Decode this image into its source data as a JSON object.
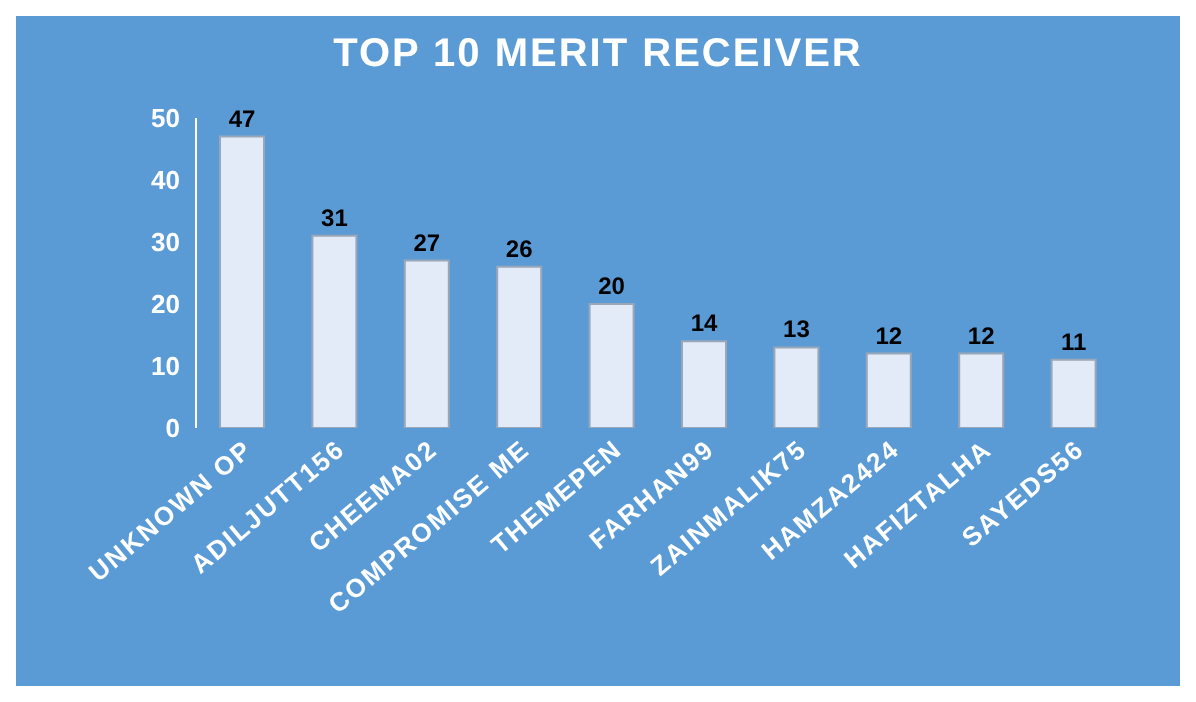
{
  "chart_data": {
    "type": "bar",
    "title": "TOP 10 MERIT RECEIVER",
    "categories": [
      "UNKNOWN OP",
      "ADILJUTT156",
      "CHEEMA02",
      "COMPROMISE ME",
      "THEMEPEN",
      "FARHAN99",
      "ZAINMALIK75",
      "HAMZA2424",
      "HAFIZTALHA",
      "SAYEDS56"
    ],
    "values": [
      47,
      31,
      27,
      26,
      20,
      14,
      13,
      12,
      12,
      11
    ],
    "color": "#e3ebf8",
    "ylim": [
      0,
      50
    ],
    "yticks": [
      0,
      10,
      20,
      30,
      40,
      50
    ],
    "grid": false,
    "data_labels": true
  }
}
